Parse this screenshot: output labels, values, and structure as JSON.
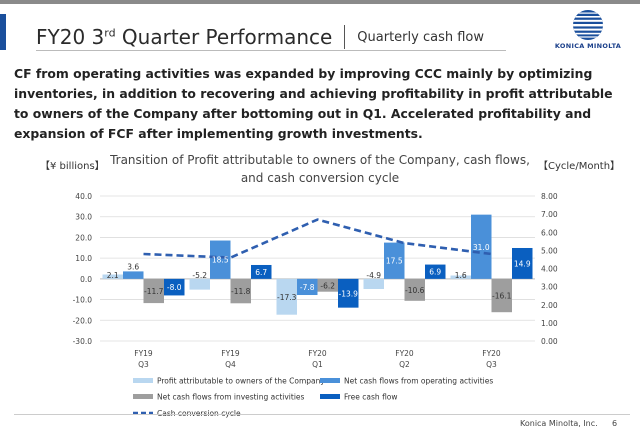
{
  "header": {
    "title_main": "FY20 3",
    "title_sup": "rd",
    "title_rest": " Quarter Performance",
    "subtitle": "Quarterly cash flow",
    "logo_text": "KONICA MINOLTA"
  },
  "description": "CF from operating activities was expanded by improving CCC mainly by optimizing inventories, in addition to recovering and achieving profitability in profit attributable to owners of the Company after bottoming out in Q1. Accelerated profitability and expansion of FCF after implementing growth investments.",
  "footer": {
    "company": "Konica Minolta, Inc.",
    "page": "6"
  },
  "chart_data": {
    "type": "bar",
    "title": "Transition of Profit attributable to owners of the Company, cash flows, and cash conversion cycle",
    "ylabel_left": "【¥ billions】",
    "ylabel_right": "【Cycle/Month】",
    "ylim": [
      -30,
      40
    ],
    "ylim_right": [
      0,
      8
    ],
    "y_ticks": [
      "40.0",
      "30.0",
      "20.0",
      "10.0",
      "0.0",
      "-10.0",
      "-20.0",
      "-30.0"
    ],
    "y_ticks_right": [
      "8.00",
      "7.00",
      "6.00",
      "5.00",
      "4.00",
      "3.00",
      "2.00",
      "1.00",
      "0.00"
    ],
    "categories": [
      {
        "line1": "FY19",
        "line2": "Q3"
      },
      {
        "line1": "FY19",
        "line2": "Q4"
      },
      {
        "line1": "FY20",
        "line2": "Q1"
      },
      {
        "line1": "FY20",
        "line2": "Q2"
      },
      {
        "line1": "FY20",
        "line2": "Q3"
      }
    ],
    "series": [
      {
        "name": "Profit attributable to owners of the Company",
        "color": "#b9d7f0",
        "values": [
          2.1,
          -5.2,
          -17.3,
          -4.9,
          1.6
        ],
        "labels": [
          "2.1",
          "-5.2",
          "-17.3",
          "-4.9",
          "1.6"
        ]
      },
      {
        "name": "Net cash flows from operating activities",
        "color": "#4a90d9",
        "values": [
          3.6,
          18.5,
          -7.8,
          17.5,
          31.0
        ],
        "labels": [
          "3.6",
          "18.5",
          "-7.8",
          "17.5",
          "31.0"
        ]
      },
      {
        "name": "Net cash flows from investing activities",
        "color": "#9e9e9e",
        "values": [
          -11.7,
          -11.8,
          -6.2,
          -10.6,
          -16.1
        ],
        "labels": [
          "-11.7",
          "-11.8",
          "-6.2",
          "-10.6",
          "-16.1"
        ]
      },
      {
        "name": "Free cash flow",
        "color": "#0a5fc0",
        "values": [
          -8.0,
          6.7,
          -13.9,
          6.9,
          14.9
        ],
        "labels": [
          "-8.0",
          "6.7",
          "-13.9",
          "6.9",
          "14.9"
        ]
      }
    ],
    "line_series": {
      "name": "Cash conversion cycle",
      "color": "#2f5fb0",
      "values": [
        4.8,
        4.6,
        6.7,
        5.4,
        4.8
      ]
    },
    "grid": true,
    "legend_position": "bottom"
  }
}
